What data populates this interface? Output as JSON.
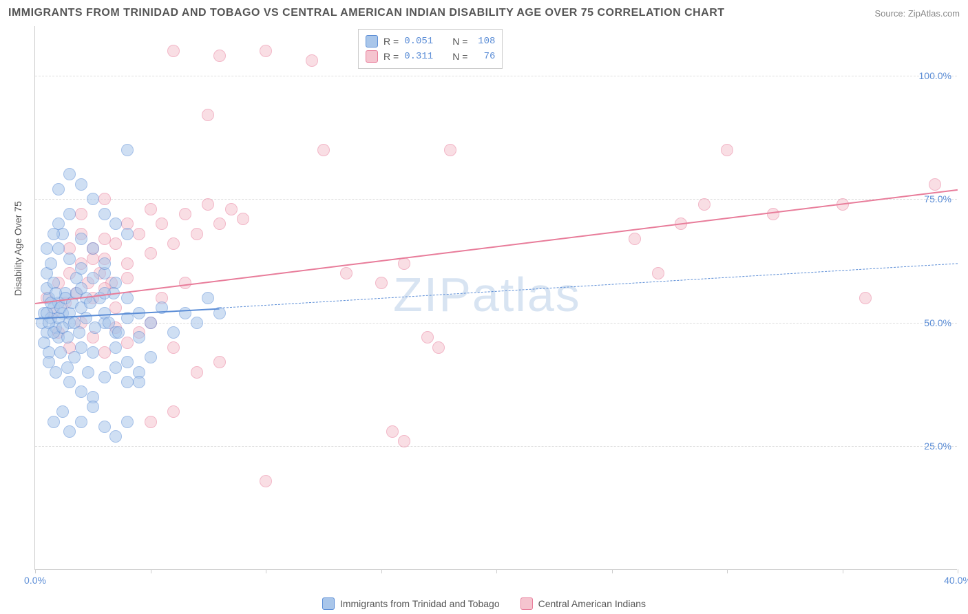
{
  "title": "IMMIGRANTS FROM TRINIDAD AND TOBAGO VS CENTRAL AMERICAN INDIAN DISABILITY AGE OVER 75 CORRELATION CHART",
  "source": "Source: ZipAtlas.com",
  "watermark": "ZIPatlas",
  "ylabel": "Disability Age Over 75",
  "chart": {
    "type": "scatter",
    "background_color": "#ffffff",
    "grid_color": "#dddddd",
    "axis_color": "#cccccc",
    "tick_color": "#5b8dd6",
    "xlim": [
      0,
      40
    ],
    "ylim": [
      0,
      110
    ],
    "ytick_values": [
      25,
      50,
      75,
      100
    ],
    "ytick_labels": [
      "25.0%",
      "50.0%",
      "75.0%",
      "100.0%"
    ],
    "xtick_positions": [
      0,
      5,
      10,
      15,
      20,
      25,
      30,
      35,
      40
    ],
    "xtick_labels": {
      "0": "0.0%",
      "40": "40.0%"
    },
    "marker_radius": 9,
    "marker_opacity": 0.55
  },
  "series": {
    "a": {
      "label": "Immigrants from Trinidad and Tobago",
      "fill_color": "#a9c6ea",
      "stroke_color": "#5b8dd6",
      "R": "0.051",
      "N": "108",
      "trend": {
        "x0": 0,
        "y0": 51,
        "x1": 8,
        "y1": 53,
        "width": 2.5,
        "style": "solid"
      },
      "trend_ext": {
        "x0": 8,
        "y0": 53,
        "x1": 40,
        "y1": 62,
        "width": 1.5,
        "style": "dashed"
      },
      "points": [
        [
          0.3,
          50
        ],
        [
          0.4,
          52
        ],
        [
          0.5,
          48
        ],
        [
          0.6,
          55
        ],
        [
          0.7,
          51
        ],
        [
          0.8,
          53
        ],
        [
          0.9,
          49
        ],
        [
          1.0,
          54
        ],
        [
          0.4,
          46
        ],
        [
          0.5,
          57
        ],
        [
          0.6,
          44
        ],
        [
          0.8,
          58
        ],
        [
          1.0,
          47
        ],
        [
          1.2,
          52
        ],
        [
          1.3,
          56
        ],
        [
          1.5,
          50
        ],
        [
          0.5,
          60
        ],
        [
          0.7,
          62
        ],
        [
          1.0,
          65
        ],
        [
          1.2,
          68
        ],
        [
          1.5,
          63
        ],
        [
          1.8,
          59
        ],
        [
          2.0,
          61
        ],
        [
          2.2,
          55
        ],
        [
          0.6,
          42
        ],
        [
          0.9,
          40
        ],
        [
          1.1,
          44
        ],
        [
          1.4,
          41
        ],
        [
          1.7,
          43
        ],
        [
          2.0,
          45
        ],
        [
          2.3,
          40
        ],
        [
          2.5,
          44
        ],
        [
          1.0,
          70
        ],
        [
          1.5,
          72
        ],
        [
          2.0,
          67
        ],
        [
          2.5,
          65
        ],
        [
          3.0,
          60
        ],
        [
          3.5,
          58
        ],
        [
          4.0,
          55
        ],
        [
          4.5,
          52
        ],
        [
          1.5,
          38
        ],
        [
          2.0,
          36
        ],
        [
          2.5,
          35
        ],
        [
          3.0,
          39
        ],
        [
          3.5,
          41
        ],
        [
          4.0,
          38
        ],
        [
          4.5,
          40
        ],
        [
          5.0,
          43
        ],
        [
          2.0,
          78
        ],
        [
          2.5,
          75
        ],
        [
          3.0,
          72
        ],
        [
          3.5,
          70
        ],
        [
          4.0,
          68
        ],
        [
          3.0,
          50
        ],
        [
          3.5,
          48
        ],
        [
          4.0,
          51
        ],
        [
          4.5,
          47
        ],
        [
          5.0,
          50
        ],
        [
          5.5,
          53
        ],
        [
          6.0,
          48
        ],
        [
          6.5,
          52
        ],
        [
          7.0,
          50
        ],
        [
          7.5,
          55
        ],
        [
          8.0,
          52
        ],
        [
          0.8,
          30
        ],
        [
          1.2,
          32
        ],
        [
          1.5,
          28
        ],
        [
          2.0,
          30
        ],
        [
          2.5,
          33
        ],
        [
          3.0,
          29
        ],
        [
          3.5,
          27
        ],
        [
          4.0,
          30
        ],
        [
          0.5,
          52
        ],
        [
          0.6,
          50
        ],
        [
          0.7,
          54
        ],
        [
          0.8,
          48
        ],
        [
          0.9,
          56
        ],
        [
          1.0,
          51
        ],
        [
          1.1,
          53
        ],
        [
          1.2,
          49
        ],
        [
          1.3,
          55
        ],
        [
          1.4,
          47
        ],
        [
          1.5,
          52
        ],
        [
          1.6,
          54
        ],
        [
          1.7,
          50
        ],
        [
          1.8,
          56
        ],
        [
          1.9,
          48
        ],
        [
          2.0,
          53
        ],
        [
          2.2,
          51
        ],
        [
          2.4,
          54
        ],
        [
          2.6,
          49
        ],
        [
          2.8,
          55
        ],
        [
          3.0,
          52
        ],
        [
          3.2,
          50
        ],
        [
          3.4,
          56
        ],
        [
          3.6,
          48
        ],
        [
          1.0,
          77
        ],
        [
          1.5,
          80
        ],
        [
          2.0,
          57
        ],
        [
          2.5,
          59
        ],
        [
          3.0,
          56
        ],
        [
          4.0,
          85
        ],
        [
          0.5,
          65
        ],
        [
          0.8,
          68
        ],
        [
          3.5,
          45
        ],
        [
          4.0,
          42
        ],
        [
          4.5,
          38
        ],
        [
          3.0,
          62
        ]
      ]
    },
    "b": {
      "label": "Central American Indians",
      "fill_color": "#f5c4cf",
      "stroke_color": "#e87c9a",
      "R": "0.311",
      "N": "76",
      "trend": {
        "x0": 0,
        "y0": 54,
        "x1": 40,
        "y1": 77,
        "width": 2.5,
        "style": "solid"
      },
      "points": [
        [
          0.5,
          55
        ],
        [
          0.8,
          52
        ],
        [
          1.0,
          58
        ],
        [
          1.3,
          54
        ],
        [
          1.5,
          60
        ],
        [
          1.8,
          56
        ],
        [
          2.0,
          62
        ],
        [
          2.3,
          58
        ],
        [
          2.5,
          65
        ],
        [
          2.8,
          60
        ],
        [
          3.0,
          63
        ],
        [
          3.3,
          58
        ],
        [
          3.5,
          66
        ],
        [
          4.0,
          62
        ],
        [
          4.5,
          68
        ],
        [
          5.0,
          64
        ],
        [
          5.5,
          70
        ],
        [
          6.0,
          66
        ],
        [
          6.5,
          72
        ],
        [
          7.0,
          68
        ],
        [
          7.5,
          74
        ],
        [
          8.0,
          70
        ],
        [
          8.5,
          73
        ],
        [
          9.0,
          71
        ],
        [
          1.0,
          48
        ],
        [
          1.5,
          45
        ],
        [
          2.0,
          50
        ],
        [
          2.5,
          47
        ],
        [
          3.0,
          44
        ],
        [
          3.5,
          49
        ],
        [
          4.0,
          46
        ],
        [
          4.5,
          48
        ],
        [
          5.0,
          50
        ],
        [
          6.0,
          45
        ],
        [
          7.0,
          40
        ],
        [
          8.0,
          42
        ],
        [
          2.0,
          72
        ],
        [
          3.0,
          75
        ],
        [
          4.0,
          70
        ],
        [
          5.0,
          73
        ],
        [
          6.0,
          105
        ],
        [
          8.0,
          104
        ],
        [
          10.0,
          105
        ],
        [
          12.0,
          103
        ],
        [
          7.5,
          92
        ],
        [
          12.5,
          85
        ],
        [
          18.0,
          85
        ],
        [
          13.5,
          60
        ],
        [
          15.0,
          58
        ],
        [
          16.0,
          62
        ],
        [
          17.0,
          47
        ],
        [
          17.5,
          45
        ],
        [
          10.0,
          18
        ],
        [
          15.5,
          28
        ],
        [
          16.0,
          26
        ],
        [
          26.0,
          67
        ],
        [
          27.0,
          60
        ],
        [
          28.0,
          70
        ],
        [
          29.0,
          74
        ],
        [
          30.0,
          85
        ],
        [
          32.0,
          72
        ],
        [
          35.0,
          74
        ],
        [
          36.0,
          55
        ],
        [
          39.0,
          78
        ],
        [
          2.5,
          55
        ],
        [
          3.0,
          57
        ],
        [
          3.5,
          53
        ],
        [
          4.0,
          59
        ],
        [
          5.5,
          55
        ],
        [
          6.5,
          58
        ],
        [
          5.0,
          30
        ],
        [
          6.0,
          32
        ],
        [
          1.5,
          65
        ],
        [
          2.0,
          68
        ],
        [
          2.5,
          63
        ],
        [
          3.0,
          67
        ]
      ]
    }
  },
  "legend_top": {
    "R_label": "R =",
    "N_label": "N ="
  }
}
